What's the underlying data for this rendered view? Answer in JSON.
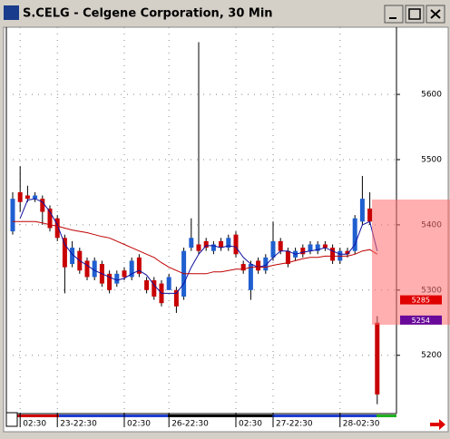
{
  "chart_data": {
    "type": "candlestick",
    "title": "S.CELG - Celgene Corporation, 30 Min",
    "categories": [
      null,
      "02:30",
      null,
      null,
      null,
      null,
      "23-22:30",
      null,
      null,
      null,
      null,
      null,
      null,
      null,
      null,
      "02:30",
      null,
      null,
      null,
      null,
      null,
      "26-22:30",
      null,
      null,
      null,
      null,
      null,
      null,
      null,
      null,
      "02:30",
      null,
      null,
      null,
      null,
      "27-22:30",
      null,
      null,
      null,
      null,
      null,
      null,
      null,
      null,
      "28-02:30",
      null,
      null,
      null,
      null,
      null
    ],
    "open": [
      5390,
      5450,
      5445,
      5440,
      5440,
      5425,
      5410,
      5380,
      5340,
      5360,
      5345,
      5320,
      5340,
      5325,
      5310,
      5330,
      5320,
      5350,
      5315,
      5315,
      5310,
      5300,
      5300,
      5290,
      5365,
      5370,
      5375,
      5360,
      5375,
      5365,
      5385,
      5340,
      5300,
      5345,
      5330,
      5350,
      5375,
      5360,
      5350,
      5365,
      5360,
      5360,
      5370,
      5365,
      5345,
      5360,
      5360,
      5405,
      5425,
      5250
    ],
    "high": [
      5450,
      5490,
      5460,
      5450,
      5445,
      5430,
      5415,
      5385,
      5375,
      5365,
      5350,
      5350,
      5345,
      5330,
      5330,
      5335,
      5350,
      5355,
      5320,
      5320,
      5315,
      5325,
      5305,
      5365,
      5410,
      5680,
      5380,
      5375,
      5380,
      5385,
      5390,
      5345,
      5345,
      5350,
      5355,
      5405,
      5380,
      5365,
      5365,
      5370,
      5375,
      5375,
      5375,
      5370,
      5365,
      5365,
      5415,
      5475,
      5450,
      5260
    ],
    "low": [
      5385,
      5420,
      5435,
      5435,
      5400,
      5390,
      5375,
      5295,
      5335,
      5325,
      5315,
      5315,
      5305,
      5295,
      5305,
      5315,
      5315,
      5320,
      5295,
      5285,
      5275,
      5300,
      5265,
      5285,
      5360,
      5355,
      5360,
      5355,
      5360,
      5360,
      5350,
      5325,
      5285,
      5325,
      5325,
      5345,
      5355,
      5335,
      5345,
      5350,
      5355,
      5355,
      5360,
      5340,
      5340,
      5350,
      5355,
      5400,
      5400,
      5125
    ],
    "close": [
      5440,
      5435,
      5440,
      5445,
      5420,
      5395,
      5380,
      5335,
      5365,
      5330,
      5320,
      5345,
      5310,
      5300,
      5325,
      5320,
      5345,
      5325,
      5300,
      5290,
      5280,
      5320,
      5275,
      5360,
      5380,
      5360,
      5365,
      5370,
      5365,
      5380,
      5355,
      5330,
      5340,
      5330,
      5350,
      5375,
      5360,
      5340,
      5360,
      5355,
      5370,
      5370,
      5365,
      5345,
      5360,
      5355,
      5410,
      5440,
      5405,
      5140
    ],
    "up_color": "#1f5fd0",
    "down_color": "#c80000",
    "series": [
      {
        "color": "#1010a0",
        "values": [
          null,
          5410,
          5438,
          5440,
          5435,
          5420,
          5400,
          5370,
          5355,
          5345,
          5338,
          5330,
          5325,
          5320,
          5315,
          5318,
          5325,
          5330,
          5323,
          5308,
          5295,
          5295,
          5295,
          5310,
          5335,
          5355,
          5368,
          5368,
          5365,
          5368,
          5366,
          5350,
          5340,
          5335,
          5338,
          5350,
          5360,
          5360,
          5355,
          5358,
          5360,
          5362,
          5365,
          5360,
          5355,
          5355,
          5370,
          5400,
          5405,
          5360
        ]
      },
      {
        "color": "#c00000",
        "values": [
          5405,
          5405,
          5405,
          5405,
          5403,
          5400,
          5398,
          5395,
          5392,
          5390,
          5388,
          5385,
          5382,
          5380,
          5375,
          5370,
          5365,
          5360,
          5355,
          5350,
          5342,
          5335,
          5330,
          5325,
          5325,
          5325,
          5325,
          5328,
          5328,
          5330,
          5332,
          5332,
          5335,
          5335,
          5335,
          5338,
          5340,
          5342,
          5345,
          5348,
          5350,
          5350,
          5352,
          5352,
          5352,
          5352,
          5355,
          5360,
          5362,
          5355
        ]
      }
    ],
    "price_labels": [
      {
        "value": 5285,
        "color": "#e00000"
      },
      {
        "value": 5254,
        "color": "#6a0a9a"
      }
    ],
    "ylim": [
      5112,
      5703
    ],
    "yticks": [
      5200,
      5300,
      5400,
      5500,
      5600
    ],
    "grid": true
  }
}
